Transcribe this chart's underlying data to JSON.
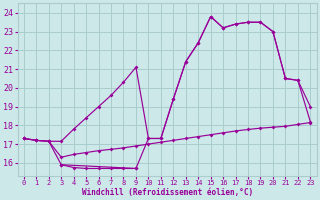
{
  "xlabel": "Windchill (Refroidissement éolien,°C)",
  "xlim": [
    -0.5,
    23.5
  ],
  "ylim": [
    15.3,
    24.5
  ],
  "xticks": [
    0,
    1,
    2,
    3,
    4,
    5,
    6,
    7,
    8,
    9,
    10,
    11,
    12,
    13,
    14,
    15,
    16,
    17,
    18,
    19,
    20,
    21,
    22,
    23
  ],
  "yticks": [
    16,
    17,
    18,
    19,
    20,
    21,
    22,
    23,
    24
  ],
  "bg_color": "#cce8e8",
  "line_color": "#990099",
  "grid_color": "#aacccc",
  "line1_x": [
    0,
    1,
    2,
    3,
    4,
    5,
    6,
    7,
    8,
    9,
    10,
    11,
    12,
    13,
    14,
    15,
    16,
    17,
    18,
    19,
    20,
    21,
    22,
    23
  ],
  "line1_y": [
    17.3,
    17.2,
    17.15,
    17.15,
    17.8,
    18.4,
    19.0,
    19.6,
    20.3,
    21.1,
    17.3,
    17.3,
    19.4,
    21.4,
    22.4,
    23.8,
    23.2,
    23.4,
    23.5,
    23.5,
    23.0,
    20.5,
    20.4,
    19.0
  ],
  "line2_x": [
    0,
    1,
    2,
    3,
    9,
    10,
    11,
    12,
    13,
    14,
    15,
    16,
    17,
    18,
    19,
    20,
    21,
    22,
    23
  ],
  "line2_y": [
    17.3,
    17.2,
    17.15,
    15.9,
    15.7,
    17.3,
    17.3,
    19.4,
    21.4,
    22.4,
    23.8,
    23.2,
    23.4,
    23.5,
    23.5,
    23.0,
    20.5,
    20.4,
    18.2
  ],
  "line2b_x": [
    3,
    4,
    5,
    6,
    7,
    8,
    9
  ],
  "line2b_y": [
    15.9,
    15.75,
    15.7,
    15.7,
    15.7,
    15.7,
    15.7
  ],
  "line3_x": [
    0,
    1,
    2,
    3,
    4,
    5,
    6,
    7,
    8,
    9,
    10,
    11,
    12,
    13,
    14,
    15,
    16,
    17,
    18,
    19,
    20,
    21,
    22,
    23
  ],
  "line3_y": [
    17.3,
    17.2,
    17.15,
    16.3,
    16.45,
    16.55,
    16.65,
    16.72,
    16.8,
    16.9,
    17.0,
    17.1,
    17.2,
    17.3,
    17.4,
    17.5,
    17.6,
    17.7,
    17.78,
    17.85,
    17.9,
    17.95,
    18.05,
    18.15
  ]
}
